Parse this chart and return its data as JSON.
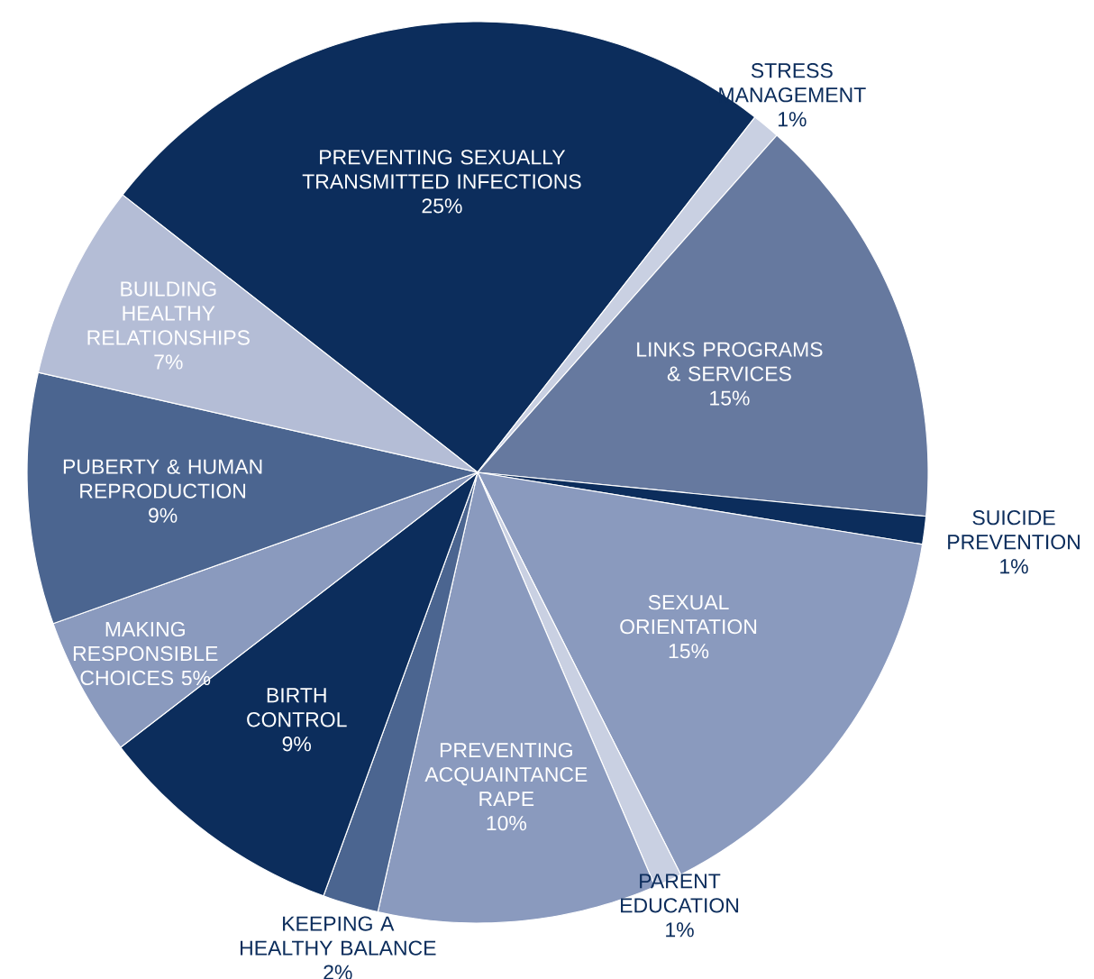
{
  "chart_data": {
    "type": "pie",
    "categories": [
      "PREVENTING SEXUALLY TRANSMITTED INFECTIONS",
      "STRESS MANAGEMENT",
      "LINKS PROGRAMS & SERVICES",
      "SUICIDE PREVENTION",
      "SEXUAL ORIENTATION",
      "PARENT EDUCATION",
      "PREVENTING ACQUAINTANCE RAPE",
      "KEEPING A HEALTHY BALANCE",
      "BIRTH CONTROL",
      "MAKING RESPONSIBLE CHOICES",
      "PUBERTY & HUMAN REPRODUCTION",
      "BUILDING HEALTHY RELATIONSHIPS"
    ],
    "values": [
      25,
      1,
      15,
      1,
      15,
      1,
      10,
      2,
      9,
      5,
      9,
      7
    ],
    "value_labels": [
      "25%",
      "1%",
      "15%",
      "1%",
      "15%",
      "1%",
      "10%",
      "2%",
      "9%",
      "5%",
      "9%",
      "7%"
    ],
    "colors": [
      "#0c2d5c",
      "#c9d0e2",
      "#66799f",
      "#0c2d5c",
      "#8a9abe",
      "#c9d0e2",
      "#8a9abe",
      "#4b6590",
      "#0c2d5c",
      "#8a9abe",
      "#4b6590",
      "#b4bdd6"
    ]
  }
}
